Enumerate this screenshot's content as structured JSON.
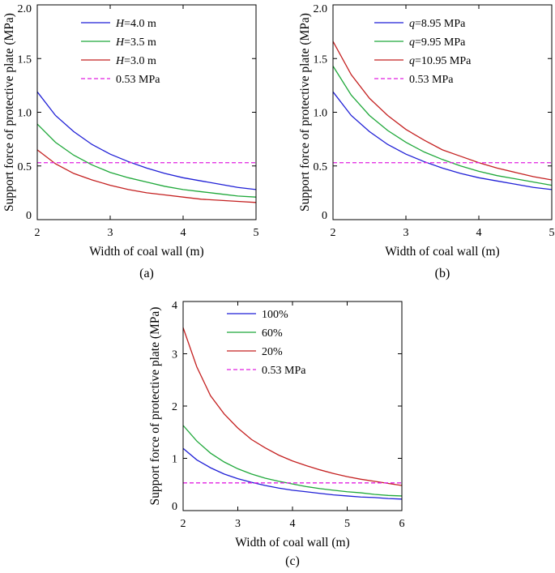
{
  "chart_data": [
    {
      "type": "line",
      "panel_label": "(a)",
      "xlabel": "Width of coal wall (m)",
      "ylabel": "Support force of protective plate (MPa)",
      "xlim": [
        2,
        5
      ],
      "ylim": [
        0,
        2.0
      ],
      "xticks": [
        "2",
        "3",
        "4",
        "5"
      ],
      "yticks": [
        "0",
        "0.5",
        "1.0",
        "1.5",
        "2.0"
      ],
      "x": [
        2,
        2.25,
        2.5,
        2.75,
        3,
        3.25,
        3.5,
        3.75,
        4,
        4.25,
        4.5,
        4.75,
        5
      ],
      "series": [
        {
          "name": "H=4.0 m",
          "var": "H",
          "rest": "=4.0 m",
          "color": "#1f1fd6",
          "dashed": false,
          "values": [
            1.19,
            0.97,
            0.82,
            0.7,
            0.61,
            0.54,
            0.48,
            0.43,
            0.39,
            0.36,
            0.33,
            0.3,
            0.28
          ]
        },
        {
          "name": "H=3.5 m",
          "var": "H",
          "rest": "=3.5 m",
          "color": "#1fa83a",
          "dashed": false,
          "values": [
            0.89,
            0.72,
            0.6,
            0.51,
            0.44,
            0.39,
            0.35,
            0.31,
            0.28,
            0.26,
            0.24,
            0.22,
            0.21
          ]
        },
        {
          "name": "H=3.0 m",
          "var": "H",
          "rest": "=3.0 m",
          "color": "#c42020",
          "dashed": false,
          "values": [
            0.65,
            0.52,
            0.43,
            0.37,
            0.32,
            0.28,
            0.25,
            0.23,
            0.21,
            0.19,
            0.18,
            0.17,
            0.16
          ]
        },
        {
          "name": "0.53 MPa",
          "var": "",
          "rest": "0.53 MPa",
          "color": "#e020e0",
          "dashed": true,
          "values": [
            0.53,
            0.53,
            0.53,
            0.53,
            0.53,
            0.53,
            0.53,
            0.53,
            0.53,
            0.53,
            0.53,
            0.53,
            0.53
          ]
        }
      ]
    },
    {
      "type": "line",
      "panel_label": "(b)",
      "xlabel": "Width of coal wall (m)",
      "ylabel": "Support force of protective plate (MPa)",
      "xlim": [
        2,
        5
      ],
      "ylim": [
        0,
        2.0
      ],
      "xticks": [
        "2",
        "3",
        "4",
        "5"
      ],
      "yticks": [
        "0",
        "0.5",
        "1.0",
        "1.5",
        "2.0"
      ],
      "x": [
        2,
        2.25,
        2.5,
        2.75,
        3,
        3.25,
        3.5,
        3.75,
        4,
        4.25,
        4.5,
        4.75,
        5
      ],
      "series": [
        {
          "name": "q=8.95 MPa",
          "var": "q",
          "rest": "=8.95 MPa",
          "color": "#1f1fd6",
          "dashed": false,
          "values": [
            1.19,
            0.97,
            0.82,
            0.7,
            0.61,
            0.54,
            0.48,
            0.43,
            0.39,
            0.36,
            0.33,
            0.3,
            0.28
          ]
        },
        {
          "name": "q=9.95 MPa",
          "var": "q",
          "rest": "=9.95 MPa",
          "color": "#1fa83a",
          "dashed": false,
          "values": [
            1.43,
            1.16,
            0.97,
            0.83,
            0.72,
            0.63,
            0.56,
            0.5,
            0.45,
            0.41,
            0.38,
            0.35,
            0.32
          ]
        },
        {
          "name": "q=10.95 MPa",
          "var": "q",
          "rest": "=10.95 MPa",
          "color": "#c42020",
          "dashed": false,
          "values": [
            1.66,
            1.35,
            1.13,
            0.97,
            0.84,
            0.74,
            0.65,
            0.59,
            0.53,
            0.48,
            0.44,
            0.4,
            0.37
          ]
        },
        {
          "name": "0.53 MPa",
          "var": "",
          "rest": "0.53 MPa",
          "color": "#e020e0",
          "dashed": true,
          "values": [
            0.53,
            0.53,
            0.53,
            0.53,
            0.53,
            0.53,
            0.53,
            0.53,
            0.53,
            0.53,
            0.53,
            0.53,
            0.53
          ]
        }
      ]
    },
    {
      "type": "line",
      "panel_label": "(c)",
      "xlabel": "Width of coal wall (m)",
      "ylabel": "Support force of protective plate (MPa)",
      "xlim": [
        2,
        6
      ],
      "ylim": [
        0,
        4
      ],
      "xticks": [
        "2",
        "3",
        "4",
        "5",
        "6"
      ],
      "yticks": [
        "0",
        "1",
        "2",
        "3",
        "4"
      ],
      "x": [
        2,
        2.25,
        2.5,
        2.75,
        3,
        3.25,
        3.5,
        3.75,
        4,
        4.25,
        4.5,
        4.75,
        5,
        5.25,
        5.5,
        5.75,
        6
      ],
      "series": [
        {
          "name": "100%",
          "var": "",
          "rest": "100%",
          "color": "#1f1fd6",
          "dashed": false,
          "values": [
            1.19,
            0.97,
            0.82,
            0.7,
            0.61,
            0.54,
            0.48,
            0.43,
            0.39,
            0.36,
            0.33,
            0.3,
            0.28,
            0.26,
            0.25,
            0.23,
            0.22
          ]
        },
        {
          "name": "60%",
          "var": "",
          "rest": "60%",
          "color": "#1fa83a",
          "dashed": false,
          "values": [
            1.63,
            1.33,
            1.1,
            0.93,
            0.8,
            0.7,
            0.62,
            0.56,
            0.51,
            0.46,
            0.42,
            0.39,
            0.36,
            0.34,
            0.31,
            0.29,
            0.28
          ]
        },
        {
          "name": "20%",
          "var": "",
          "rest": "20%",
          "color": "#c42020",
          "dashed": false,
          "values": [
            3.5,
            2.75,
            2.2,
            1.85,
            1.58,
            1.36,
            1.2,
            1.06,
            0.95,
            0.86,
            0.78,
            0.71,
            0.65,
            0.6,
            0.56,
            0.52,
            0.48
          ]
        },
        {
          "name": "0.53 MPa",
          "var": "",
          "rest": "0.53 MPa",
          "color": "#e020e0",
          "dashed": true,
          "values": [
            0.53,
            0.53,
            0.53,
            0.53,
            0.53,
            0.53,
            0.53,
            0.53,
            0.53,
            0.53,
            0.53,
            0.53,
            0.53,
            0.53,
            0.53,
            0.53,
            0.53
          ]
        }
      ]
    }
  ]
}
